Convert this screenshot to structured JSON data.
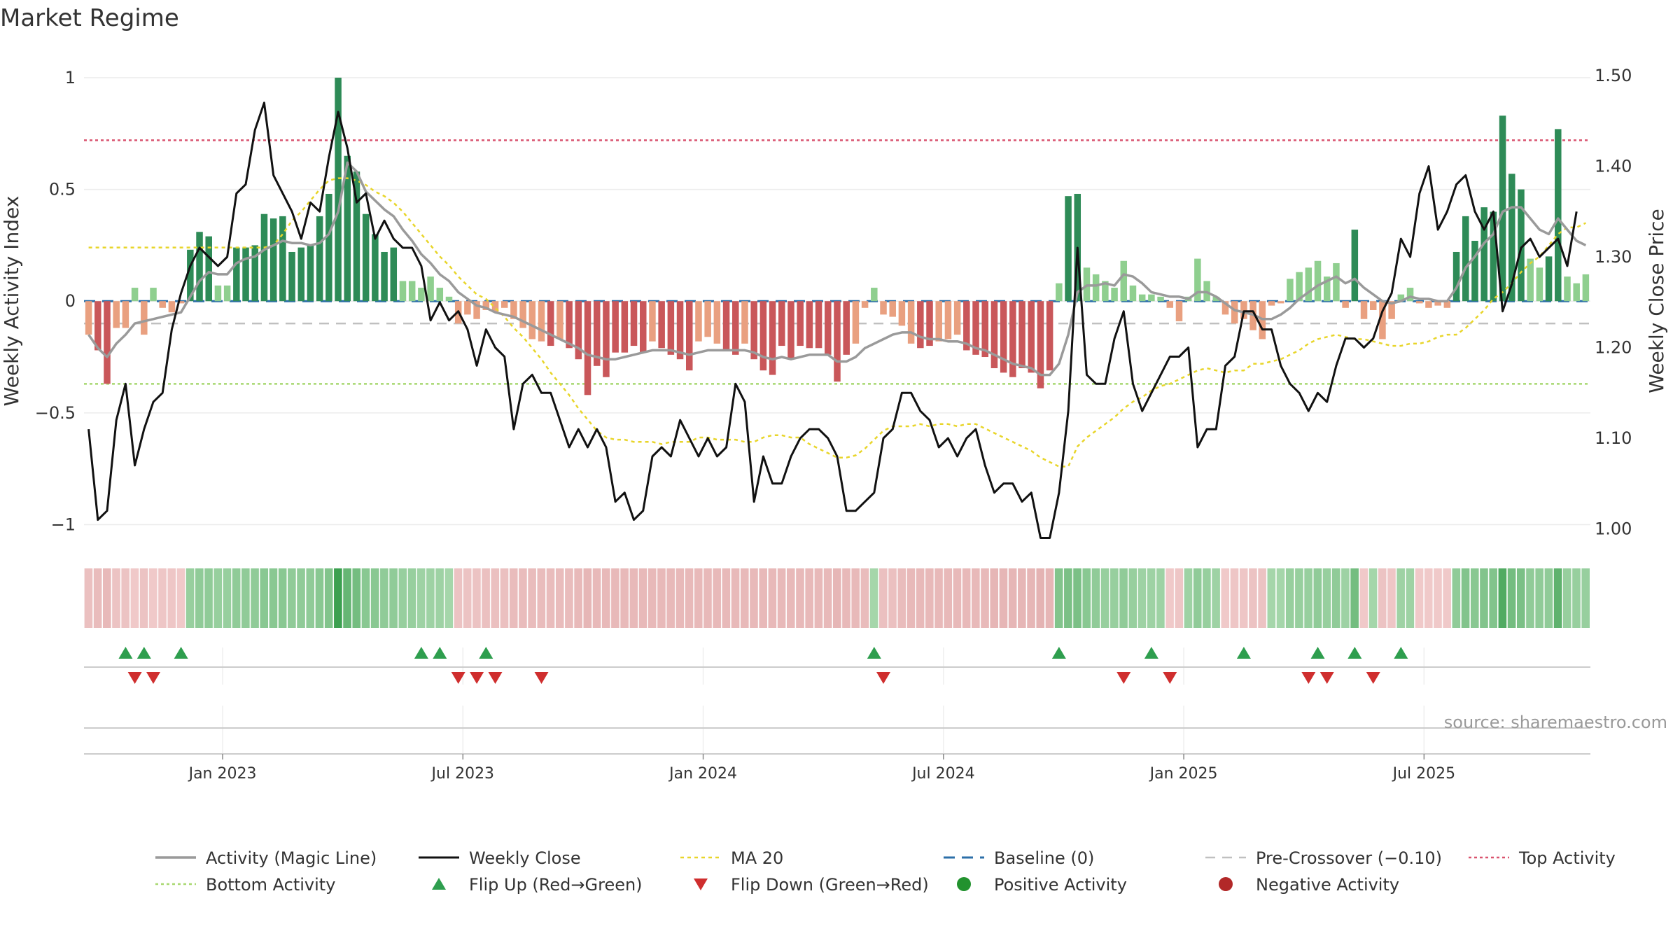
{
  "chart_data": {
    "type": "bar",
    "title": "Market Regime",
    "ylabel": "Weekly Activity Index",
    "y2label": "Weekly Close Price",
    "source": "source: sharemaestro.com",
    "ylim": [
      -1.08,
      1.05
    ],
    "y2lim": [
      0.985,
      1.51
    ],
    "yticks": [
      {
        "v": 1,
        "label": "1"
      },
      {
        "v": 0.5,
        "label": "0.5"
      },
      {
        "v": 0,
        "label": "0"
      },
      {
        "v": -0.5,
        "label": "−0.5"
      },
      {
        "v": -1,
        "label": "−1"
      }
    ],
    "y2ticks": [
      {
        "v": 1.5,
        "label": "1.50"
      },
      {
        "v": 1.4,
        "label": "1.40"
      },
      {
        "v": 1.3,
        "label": "1.30"
      },
      {
        "v": 1.2,
        "label": "1.20"
      },
      {
        "v": 1.1,
        "label": "1.10"
      },
      {
        "v": 1.0,
        "label": "1.00"
      }
    ],
    "xticks": [
      {
        "i": 15,
        "label": "Jan 2023"
      },
      {
        "i": 41,
        "label": "Jul 2023"
      },
      {
        "i": 67,
        "label": "Jan 2024"
      },
      {
        "i": 93,
        "label": "Jul 2024"
      },
      {
        "i": 119,
        "label": "Jan 2025"
      },
      {
        "i": 145,
        "label": "Jul 2025"
      }
    ],
    "top_activity": 0.72,
    "bottom_activity": -0.37,
    "pre_crossover": -0.1,
    "baseline": 0,
    "activity": [
      -0.15,
      -0.22,
      -0.37,
      -0.12,
      -0.12,
      0.06,
      -0.15,
      0.06,
      -0.03,
      -0.05,
      -0.01,
      0.23,
      0.31,
      0.29,
      0.07,
      0.07,
      0.24,
      0.24,
      0.25,
      0.39,
      0.37,
      0.38,
      0.22,
      0.24,
      0.25,
      0.38,
      0.48,
      1.0,
      0.65,
      0.58,
      0.39,
      0.3,
      0.22,
      0.24,
      0.09,
      0.09,
      0.06,
      0.11,
      0.06,
      0.02,
      -0.1,
      -0.06,
      -0.08,
      -0.04,
      -0.05,
      -0.03,
      -0.08,
      -0.12,
      -0.17,
      -0.18,
      -0.2,
      -0.17,
      -0.21,
      -0.26,
      -0.42,
      -0.29,
      -0.34,
      -0.23,
      -0.23,
      -0.2,
      -0.23,
      -0.18,
      -0.21,
      -0.24,
      -0.26,
      -0.31,
      -0.18,
      -0.16,
      -0.19,
      -0.22,
      -0.24,
      -0.19,
      -0.26,
      -0.31,
      -0.33,
      -0.2,
      -0.26,
      -0.2,
      -0.21,
      -0.21,
      -0.24,
      -0.36,
      -0.24,
      -0.19,
      -0.03,
      0.06,
      -0.06,
      -0.07,
      -0.11,
      -0.19,
      -0.21,
      -0.2,
      -0.18,
      -0.17,
      -0.15,
      -0.22,
      -0.24,
      -0.25,
      -0.3,
      -0.32,
      -0.34,
      -0.3,
      -0.32,
      -0.39,
      -0.31,
      0.08,
      0.47,
      0.48,
      0.15,
      0.12,
      0.09,
      0.06,
      0.18,
      0.07,
      0.03,
      0.03,
      0.02,
      -0.03,
      -0.09,
      0.02,
      0.19,
      0.09,
      0.02,
      -0.06,
      -0.1,
      -0.08,
      -0.13,
      -0.17,
      -0.02,
      -0.01,
      0.1,
      0.13,
      0.15,
      0.18,
      0.11,
      0.17,
      -0.03,
      0.32,
      -0.08,
      -0.04,
      -0.17,
      -0.08,
      0.03,
      0.06,
      -0.01,
      -0.03,
      -0.02,
      -0.03,
      0.22,
      0.38,
      0.27,
      0.42,
      0.4,
      0.83,
      0.57,
      0.5,
      0.19,
      0.15,
      0.2,
      0.77,
      0.11,
      0.08,
      0.12
    ],
    "magic_line": [
      -0.15,
      -0.21,
      -0.25,
      -0.19,
      -0.15,
      -0.1,
      -0.09,
      -0.08,
      -0.07,
      -0.06,
      -0.05,
      0.02,
      0.09,
      0.13,
      0.12,
      0.12,
      0.17,
      0.19,
      0.2,
      0.23,
      0.25,
      0.27,
      0.26,
      0.26,
      0.25,
      0.26,
      0.3,
      0.4,
      0.62,
      0.58,
      0.49,
      0.45,
      0.41,
      0.38,
      0.32,
      0.27,
      0.21,
      0.17,
      0.12,
      0.09,
      0.04,
      0.01,
      -0.02,
      -0.03,
      -0.05,
      -0.06,
      -0.07,
      -0.09,
      -0.11,
      -0.13,
      -0.15,
      -0.17,
      -0.19,
      -0.21,
      -0.24,
      -0.25,
      -0.26,
      -0.26,
      -0.25,
      -0.24,
      -0.23,
      -0.22,
      -0.22,
      -0.22,
      -0.23,
      -0.24,
      -0.23,
      -0.22,
      -0.22,
      -0.22,
      -0.22,
      -0.22,
      -0.23,
      -0.25,
      -0.26,
      -0.25,
      -0.26,
      -0.25,
      -0.24,
      -0.24,
      -0.24,
      -0.27,
      -0.27,
      -0.25,
      -0.21,
      -0.19,
      -0.17,
      -0.15,
      -0.14,
      -0.14,
      -0.16,
      -0.17,
      -0.17,
      -0.18,
      -0.18,
      -0.19,
      -0.21,
      -0.22,
      -0.24,
      -0.26,
      -0.28,
      -0.29,
      -0.3,
      -0.33,
      -0.33,
      -0.28,
      -0.15,
      0.04,
      0.07,
      0.07,
      0.08,
      0.07,
      0.12,
      0.11,
      0.08,
      0.04,
      0.03,
      0.02,
      0.02,
      0.01,
      0.04,
      0.04,
      0.02,
      -0.01,
      -0.04,
      -0.05,
      -0.06,
      -0.08,
      -0.08,
      -0.06,
      -0.03,
      0.01,
      0.04,
      0.07,
      0.09,
      0.11,
      0.08,
      0.1,
      0.06,
      0.03,
      0.0,
      -0.01,
      0.0,
      0.02,
      0.01,
      0.01,
      0.0,
      0.0,
      0.06,
      0.15,
      0.2,
      0.26,
      0.3,
      0.4,
      0.42,
      0.42,
      0.37,
      0.32,
      0.3,
      0.37,
      0.32,
      0.27,
      0.25
    ],
    "weekly_close": [
      1.11,
      1.01,
      1.02,
      1.12,
      1.16,
      1.07,
      1.11,
      1.14,
      1.15,
      1.22,
      1.26,
      1.29,
      1.31,
      1.3,
      1.29,
      1.3,
      1.37,
      1.38,
      1.44,
      1.47,
      1.39,
      1.37,
      1.35,
      1.32,
      1.36,
      1.35,
      1.41,
      1.46,
      1.42,
      1.36,
      1.37,
      1.32,
      1.34,
      1.32,
      1.31,
      1.31,
      1.29,
      1.23,
      1.25,
      1.23,
      1.24,
      1.22,
      1.18,
      1.22,
      1.2,
      1.19,
      1.11,
      1.16,
      1.17,
      1.15,
      1.15,
      1.12,
      1.09,
      1.11,
      1.09,
      1.11,
      1.09,
      1.03,
      1.04,
      1.01,
      1.02,
      1.08,
      1.09,
      1.08,
      1.12,
      1.1,
      1.08,
      1.1,
      1.08,
      1.09,
      1.16,
      1.14,
      1.03,
      1.08,
      1.05,
      1.05,
      1.08,
      1.1,
      1.11,
      1.11,
      1.1,
      1.08,
      1.02,
      1.02,
      1.03,
      1.04,
      1.1,
      1.11,
      1.15,
      1.15,
      1.13,
      1.12,
      1.09,
      1.1,
      1.08,
      1.1,
      1.11,
      1.07,
      1.04,
      1.05,
      1.05,
      1.03,
      1.04,
      0.99,
      0.99,
      1.04,
      1.13,
      1.31,
      1.17,
      1.16,
      1.16,
      1.21,
      1.24,
      1.16,
      1.13,
      1.15,
      1.17,
      1.19,
      1.19,
      1.2,
      1.09,
      1.11,
      1.11,
      1.18,
      1.19,
      1.24,
      1.24,
      1.22,
      1.22,
      1.18,
      1.16,
      1.15,
      1.13,
      1.15,
      1.14,
      1.18,
      1.21,
      1.21,
      1.2,
      1.21,
      1.24,
      1.26,
      1.32,
      1.3,
      1.37,
      1.4,
      1.33,
      1.35,
      1.38,
      1.39,
      1.35,
      1.33,
      1.35,
      1.24,
      1.27,
      1.31,
      1.32,
      1.3,
      1.31,
      1.32,
      1.29,
      1.35
    ],
    "ma20": [
      0.24,
      0.24,
      0.24,
      0.24,
      0.24,
      0.24,
      0.24,
      0.24,
      0.24,
      0.24,
      0.24,
      0.24,
      0.24,
      0.24,
      0.24,
      0.24,
      0.24,
      0.24,
      0.24,
      0.24,
      0.25,
      0.3,
      0.36,
      0.4,
      0.45,
      0.5,
      0.54,
      0.55,
      0.55,
      0.54,
      0.52,
      0.49,
      0.47,
      0.44,
      0.4,
      0.35,
      0.3,
      0.25,
      0.2,
      0.16,
      0.11,
      0.07,
      0.03,
      0.01,
      -0.03,
      -0.07,
      -0.12,
      -0.16,
      -0.21,
      -0.26,
      -0.32,
      -0.37,
      -0.42,
      -0.48,
      -0.53,
      -0.58,
      -0.61,
      -0.62,
      -0.62,
      -0.63,
      -0.63,
      -0.63,
      -0.64,
      -0.63,
      -0.63,
      -0.63,
      -0.61,
      -0.61,
      -0.62,
      -0.62,
      -0.62,
      -0.63,
      -0.63,
      -0.61,
      -0.6,
      -0.6,
      -0.61,
      -0.61,
      -0.64,
      -0.66,
      -0.68,
      -0.7,
      -0.7,
      -0.69,
      -0.66,
      -0.62,
      -0.58,
      -0.56,
      -0.56,
      -0.56,
      -0.55,
      -0.56,
      -0.55,
      -0.55,
      -0.56,
      -0.55,
      -0.55,
      -0.57,
      -0.59,
      -0.61,
      -0.63,
      -0.65,
      -0.67,
      -0.7,
      -0.72,
      -0.74,
      -0.74,
      -0.65,
      -0.61,
      -0.58,
      -0.55,
      -0.52,
      -0.48,
      -0.45,
      -0.43,
      -0.4,
      -0.38,
      -0.37,
      -0.35,
      -0.33,
      -0.31,
      -0.3,
      -0.31,
      -0.32,
      -0.31,
      -0.31,
      -0.28,
      -0.28,
      -0.27,
      -0.26,
      -0.24,
      -0.22,
      -0.19,
      -0.17,
      -0.16,
      -0.15,
      -0.16,
      -0.17,
      -0.17,
      -0.18,
      -0.19,
      -0.2,
      -0.2,
      -0.19,
      -0.19,
      -0.18,
      -0.16,
      -0.15,
      -0.15,
      -0.12,
      -0.08,
      -0.04,
      0.01,
      0.04,
      0.08,
      0.13,
      0.17,
      0.2,
      0.25,
      0.3,
      0.33,
      0.33,
      0.35
    ],
    "regime_strip": [
      -0.35,
      -0.4,
      -0.45,
      -0.3,
      -0.3,
      -0.2,
      -0.3,
      -0.2,
      -0.25,
      -0.25,
      -0.2,
      0.35,
      0.4,
      0.4,
      0.35,
      0.35,
      0.4,
      0.4,
      0.4,
      0.45,
      0.45,
      0.45,
      0.4,
      0.4,
      0.4,
      0.45,
      0.5,
      1.0,
      0.7,
      0.6,
      0.45,
      0.45,
      0.4,
      0.4,
      0.35,
      0.35,
      0.3,
      0.3,
      0.3,
      0.25,
      -0.3,
      -0.3,
      -0.3,
      -0.35,
      -0.35,
      -0.35,
      -0.4,
      -0.4,
      -0.4,
      -0.4,
      -0.4,
      -0.4,
      -0.4,
      -0.45,
      -0.5,
      -0.45,
      -0.45,
      -0.45,
      -0.45,
      -0.45,
      -0.45,
      -0.45,
      -0.45,
      -0.45,
      -0.45,
      -0.45,
      -0.45,
      -0.45,
      -0.45,
      -0.45,
      -0.45,
      -0.45,
      -0.45,
      -0.45,
      -0.45,
      -0.45,
      -0.45,
      -0.45,
      -0.45,
      -0.45,
      -0.45,
      -0.5,
      -0.45,
      -0.45,
      -0.4,
      0.25,
      -0.35,
      -0.35,
      -0.4,
      -0.45,
      -0.45,
      -0.45,
      -0.45,
      -0.45,
      -0.45,
      -0.45,
      -0.45,
      -0.45,
      -0.5,
      -0.5,
      -0.5,
      -0.5,
      -0.5,
      -0.55,
      -0.5,
      0.5,
      0.55,
      0.55,
      0.45,
      0.4,
      0.35,
      0.35,
      0.4,
      0.35,
      0.3,
      0.3,
      0.3,
      -0.2,
      -0.25,
      0.3,
      0.4,
      0.35,
      0.3,
      -0.2,
      -0.25,
      -0.25,
      -0.3,
      -0.3,
      0.25,
      0.25,
      0.35,
      0.35,
      0.35,
      0.4,
      0.35,
      0.4,
      0.3,
      0.6,
      -0.2,
      0.25,
      -0.3,
      -0.25,
      0.3,
      0.3,
      -0.2,
      -0.2,
      -0.2,
      -0.2,
      0.4,
      0.5,
      0.45,
      0.5,
      0.5,
      0.85,
      0.6,
      0.55,
      0.4,
      0.4,
      0.4,
      0.75,
      0.35,
      0.35,
      0.35
    ],
    "flip_up": [
      4,
      6,
      10,
      36,
      38,
      43,
      85,
      105,
      115,
      125,
      133,
      137,
      142
    ],
    "flip_down": [
      5,
      7,
      40,
      42,
      44,
      49,
      86,
      112,
      117,
      132,
      134,
      139
    ],
    "legend": [
      {
        "key": "magic",
        "label": "Activity (Magic Line)"
      },
      {
        "key": "close",
        "label": "Weekly Close"
      },
      {
        "key": "ma20",
        "label": "MA 20"
      },
      {
        "key": "baseline",
        "label": "Baseline (0)"
      },
      {
        "key": "precross",
        "label": "Pre-Crossover (−0.10)"
      },
      {
        "key": "top",
        "label": "Top Activity"
      },
      {
        "key": "bottom",
        "label": "Bottom Activity"
      },
      {
        "key": "flipup",
        "label": "Flip Up (Red→Green)"
      },
      {
        "key": "flipdown",
        "label": "Flip Down (Green→Red)"
      },
      {
        "key": "pos",
        "label": "Positive Activity"
      },
      {
        "key": "neg",
        "label": "Negative Activity"
      }
    ]
  },
  "colors": {
    "pos_dark": "#2e8b57",
    "pos_light": "#8fcf8f",
    "neg_dark": "#c9575a",
    "neg_light": "#e9a080",
    "magic_line": "#9a9a9a",
    "close": "#111111",
    "ma20": "#e8d52a",
    "baseline": "#2c6fa8",
    "pre_crossover": "#c0c0c0",
    "top": "#d9536f",
    "bottom": "#a8d870",
    "flip_up": "#2e9e4e",
    "flip_down": "#cf2e2e",
    "positive_dot": "#22922e",
    "negative_dot": "#b22828"
  }
}
